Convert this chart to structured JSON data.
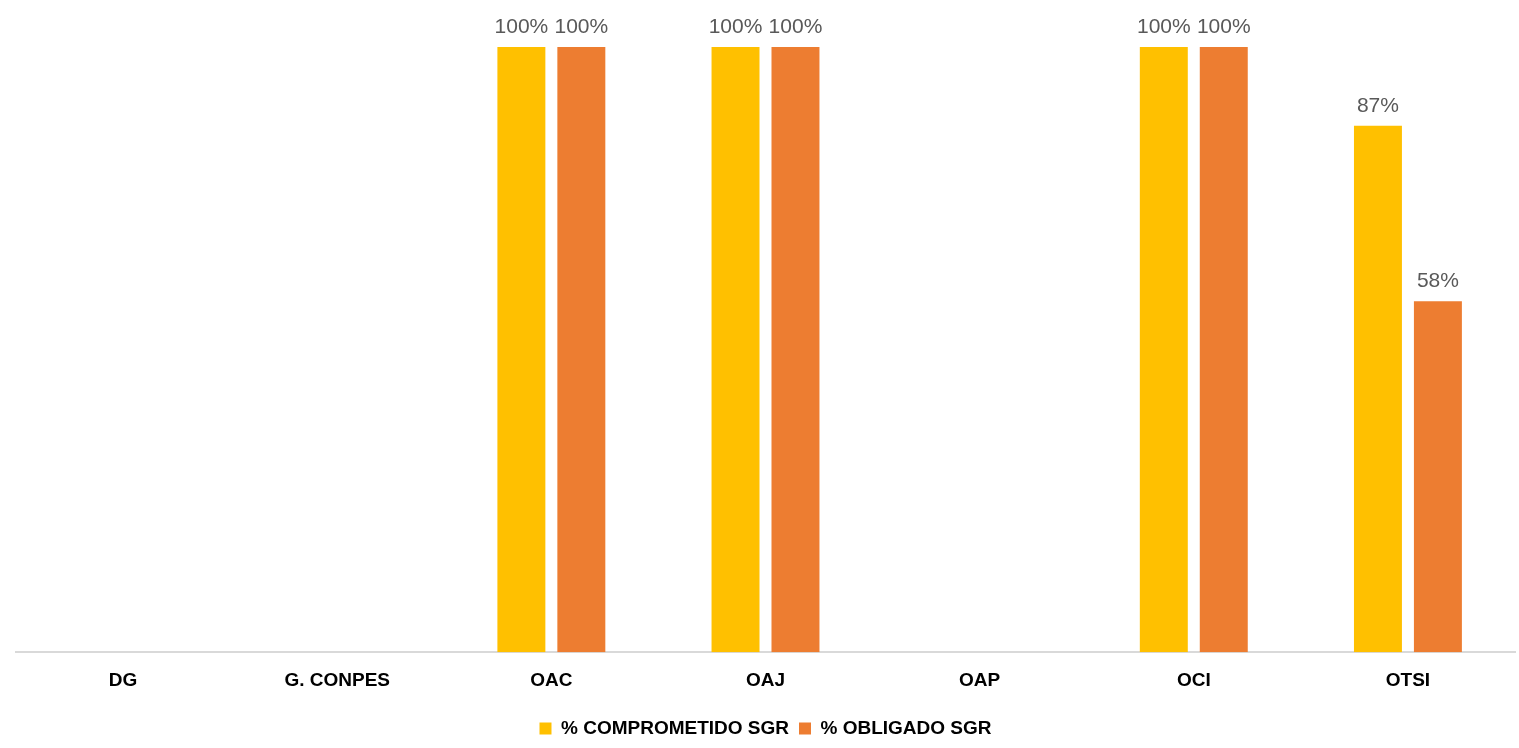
{
  "chart_data": {
    "type": "bar",
    "categories": [
      "DG",
      "G. CONPES",
      "OAC",
      "OAJ",
      "OAP",
      "OCI",
      "OTSI"
    ],
    "series": [
      {
        "name": "% COMPROMETIDO SGR",
        "color": "#ffc000",
        "values": [
          null,
          null,
          100,
          100,
          null,
          100,
          87
        ],
        "value_labels": [
          null,
          null,
          "100%",
          "100%",
          null,
          "100%",
          "87%"
        ]
      },
      {
        "name": "% OBLIGADO SGR",
        "color": "#ed7d31",
        "values": [
          null,
          null,
          100,
          100,
          null,
          100,
          58
        ],
        "value_labels": [
          null,
          null,
          "100%",
          "100%",
          null,
          "100%",
          "58%"
        ]
      }
    ],
    "legend": "bottom"
  }
}
